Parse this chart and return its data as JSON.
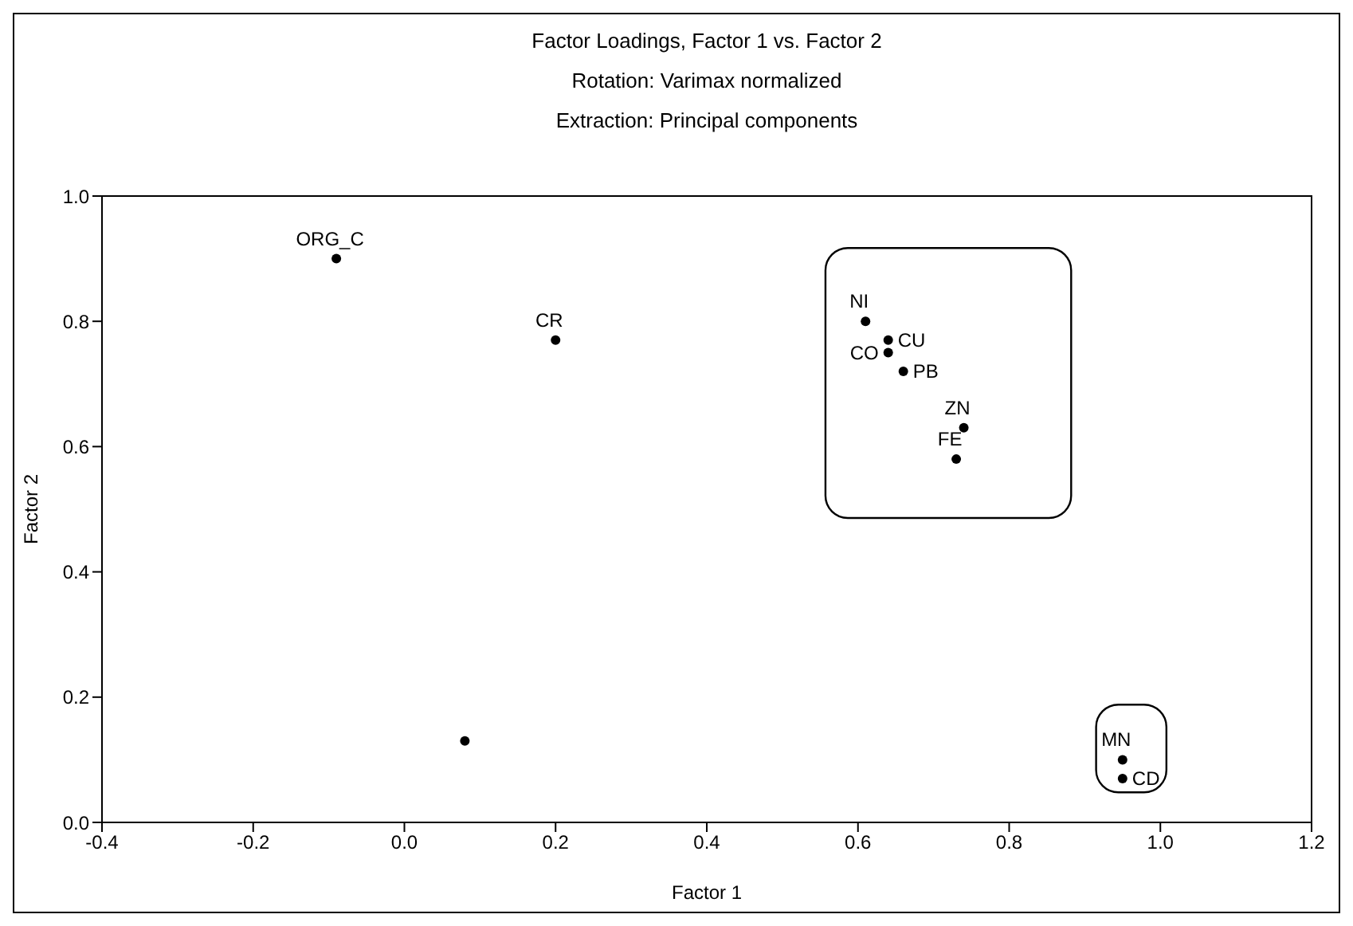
{
  "chart_data": {
    "type": "scatter",
    "title": "Factor Loadings, Factor 1 vs. Factor 2",
    "subtitle": "Rotation: Varimax normalized\nExtraction: Principal components",
    "xlabel": "Factor 1",
    "ylabel": "Factor 2",
    "xlim": [
      -0.4,
      1.2
    ],
    "xticks": [
      -0.4,
      -0.2,
      {
        "value": 0,
        "label": "0.0"
      },
      0.2,
      0.4,
      0.6,
      0.8,
      {
        "value": 1,
        "label": "1.0"
      },
      1.2
    ],
    "ylim": [
      0,
      1
    ],
    "yticks": [
      {
        "value": 0,
        "label": "0.0"
      },
      0.2,
      0.4,
      0.6,
      0.8,
      {
        "value": 1,
        "label": "1.0"
      }
    ],
    "grid": false,
    "legend": false,
    "marker": "circle",
    "series": [
      {
        "name": "ORG_C",
        "color": "#000000",
        "x": [
          -0.09
        ],
        "values": [
          0.9
        ]
      },
      {
        "name": "CR",
        "color": "#000000",
        "x": [
          0.2
        ],
        "values": [
          0.77
        ]
      },
      {
        "color": "#000000",
        "x": [
          0.08
        ],
        "values": [
          0.13
        ]
      },
      {
        "name": "NI",
        "color": "#000000",
        "x": [
          0.61
        ],
        "values": [
          0.8
        ]
      },
      {
        "name": "CU",
        "color": "#000000",
        "x": [
          0.64
        ],
        "values": [
          0.77
        ]
      },
      {
        "name": "CO",
        "color": "#000000",
        "x": [
          0.64
        ],
        "values": [
          0.75
        ]
      },
      {
        "name": "PB",
        "color": "#000000",
        "x": [
          0.66
        ],
        "values": [
          0.72
        ]
      },
      {
        "name": "ZN",
        "color": "#000000",
        "x": [
          0.74
        ],
        "values": [
          0.63
        ]
      },
      {
        "name": "FE",
        "color": "#000000",
        "x": [
          0.73
        ],
        "values": [
          0.58
        ]
      },
      {
        "name": "MN",
        "color": "#000000",
        "x": [
          0.95
        ],
        "values": [
          0.1
        ]
      },
      {
        "name": "CD",
        "color": "#000000",
        "x": [
          0.95
        ],
        "values": [
          0.07
        ]
      }
    ]
  }
}
